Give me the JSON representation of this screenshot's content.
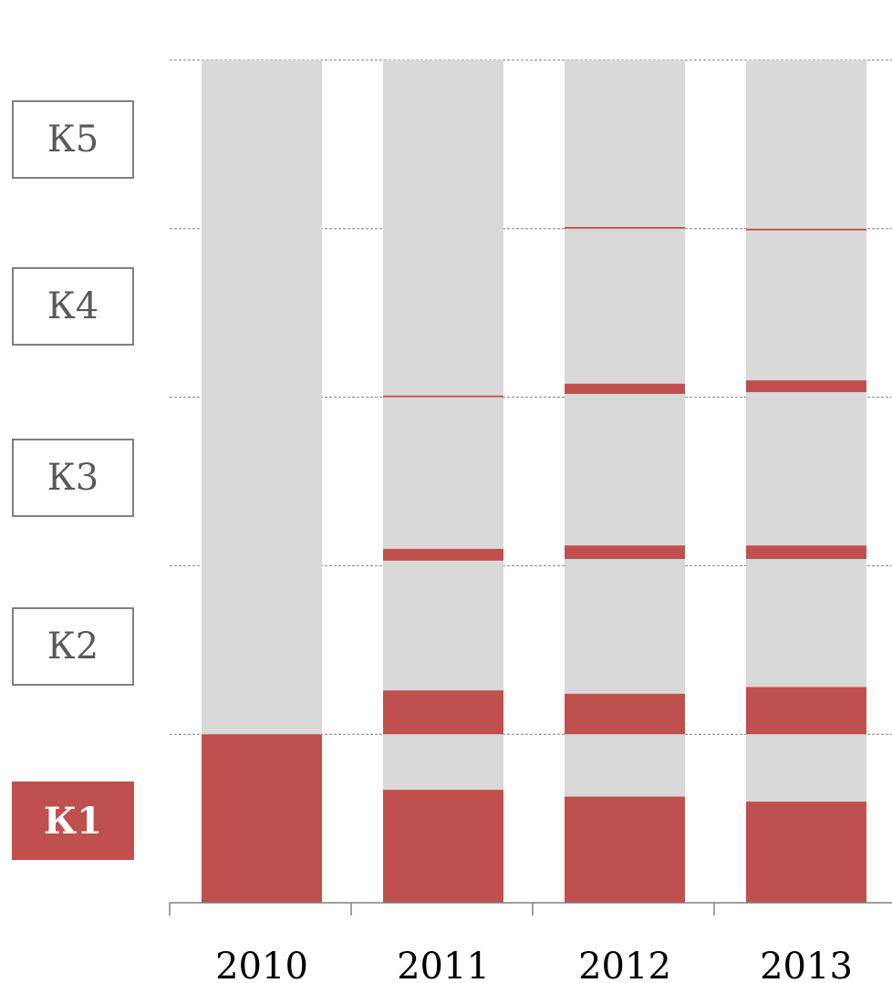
{
  "chart_data": {
    "type": "bar",
    "categories": [
      "2010",
      "2011",
      "2012",
      "2013"
    ],
    "y_levels": [
      "К1",
      "К2",
      "К3",
      "К4",
      "К5"
    ],
    "highlighted_level": "К1",
    "ylim": [
      0,
      5
    ],
    "grid": true,
    "series": [
      {
        "values": [
          [
            [
              0,
              1.0
            ]
          ],
          [
            [
              0,
              0.67
            ],
            [
              1.0,
              1.26
            ],
            [
              2.03,
              2.1
            ],
            [
              3.0,
              3.01
            ]
          ],
          [
            [
              0,
              0.63
            ],
            [
              1.0,
              1.24
            ],
            [
              2.04,
              2.12
            ],
            [
              3.02,
              3.08
            ],
            [
              4.0,
              4.01
            ]
          ],
          [
            [
              0,
              0.6
            ],
            [
              1.0,
              1.28
            ],
            [
              2.04,
              2.12
            ],
            [
              3.03,
              3.1
            ],
            [
              3.99,
              4.0
            ]
          ]
        ]
      }
    ],
    "colors": {
      "highlight": "#c0504d",
      "bar_background": "#d9d9d9",
      "grid": "#808080",
      "axis": "#808080"
    }
  }
}
